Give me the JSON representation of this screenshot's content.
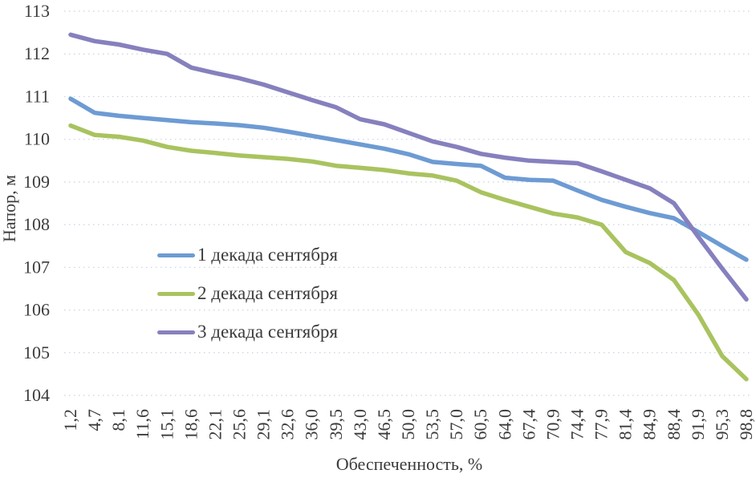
{
  "figure": {
    "background": "#ffffff",
    "text_color": "#3b3b3b",
    "gridline_color": "#bfcade"
  },
  "chart_data": {
    "type": "line",
    "title": "",
    "xlabel": "Обеспеченность, %",
    "ylabel": "Напор, м",
    "ylim": [
      104,
      113
    ],
    "ytick_step": 1,
    "yticks": [
      113,
      112,
      111,
      110,
      109,
      108,
      107,
      106,
      105,
      104
    ],
    "grid": "horizontal-dotted",
    "legend_position": "inside-center-left",
    "categories": [
      "1,2",
      "4,7",
      "8,1",
      "11,6",
      "15,1",
      "18,6",
      "22,1",
      "25,6",
      "29,1",
      "32,6",
      "36,0",
      "39,5",
      "43,0",
      "46,5",
      "50,0",
      "53,5",
      "57,0",
      "60,5",
      "64,0",
      "67,4",
      "70,9",
      "74,4",
      "77,9",
      "81,4",
      "84,9",
      "88,4",
      "91,9",
      "95,3",
      "98,8"
    ],
    "series": [
      {
        "name": "1 декада сентября",
        "color": "#6D9BD3",
        "values": [
          110.95,
          110.62,
          110.55,
          110.5,
          110.45,
          110.4,
          110.37,
          110.33,
          110.27,
          110.18,
          110.08,
          109.98,
          109.88,
          109.78,
          109.65,
          109.47,
          109.42,
          109.38,
          109.1,
          109.05,
          109.03,
          108.8,
          108.58,
          108.42,
          108.27,
          108.15,
          107.83,
          107.5,
          107.18
        ]
      },
      {
        "name": "2 декада сентября",
        "color": "#A9C35F",
        "values": [
          110.32,
          110.1,
          110.06,
          109.97,
          109.82,
          109.73,
          109.68,
          109.62,
          109.58,
          109.54,
          109.48,
          109.38,
          109.33,
          109.28,
          109.2,
          109.15,
          109.03,
          108.76,
          108.58,
          108.42,
          108.26,
          108.17,
          108.0,
          107.36,
          107.1,
          106.7,
          105.9,
          104.92,
          104.38
        ]
      },
      {
        "name": "3 декада сентября",
        "color": "#8680BE",
        "values": [
          112.45,
          112.3,
          112.22,
          112.1,
          112.0,
          111.68,
          111.55,
          111.43,
          111.28,
          111.1,
          110.92,
          110.75,
          110.47,
          110.35,
          110.15,
          109.95,
          109.82,
          109.66,
          109.57,
          109.5,
          109.47,
          109.44,
          109.25,
          109.05,
          108.85,
          108.5,
          107.72,
          106.97,
          106.25
        ]
      }
    ]
  }
}
